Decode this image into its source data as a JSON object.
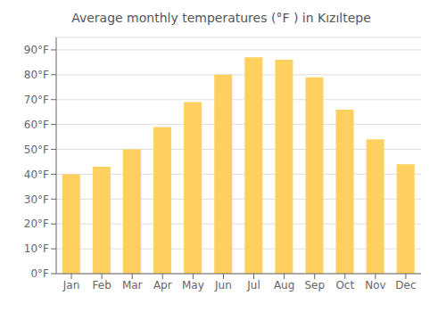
{
  "chart_data": {
    "type": "bar",
    "title": "Average monthly temperatures (°F ) in Kızıltepe",
    "categories": [
      "Jan",
      "Feb",
      "Mar",
      "Apr",
      "May",
      "Jun",
      "Jul",
      "Aug",
      "Sep",
      "Oct",
      "Nov",
      "Dec"
    ],
    "values": [
      40,
      43,
      50,
      59,
      69,
      80,
      87,
      86,
      79,
      66,
      54,
      44
    ],
    "color": "#FFD060",
    "ylim": [
      0,
      95
    ],
    "yticks": [
      {
        "value": 0,
        "label": "0°F"
      },
      {
        "value": 10,
        "label": "10°F"
      },
      {
        "value": 20,
        "label": "20°F"
      },
      {
        "value": 30,
        "label": "30°F"
      },
      {
        "value": 40,
        "label": "40°F"
      },
      {
        "value": 50,
        "label": "50°F"
      },
      {
        "value": 60,
        "label": "60°F"
      },
      {
        "value": 70,
        "label": "70°F"
      },
      {
        "value": 80,
        "label": "80°F"
      },
      {
        "value": 90,
        "label": "90°F"
      }
    ],
    "grid": true
  }
}
